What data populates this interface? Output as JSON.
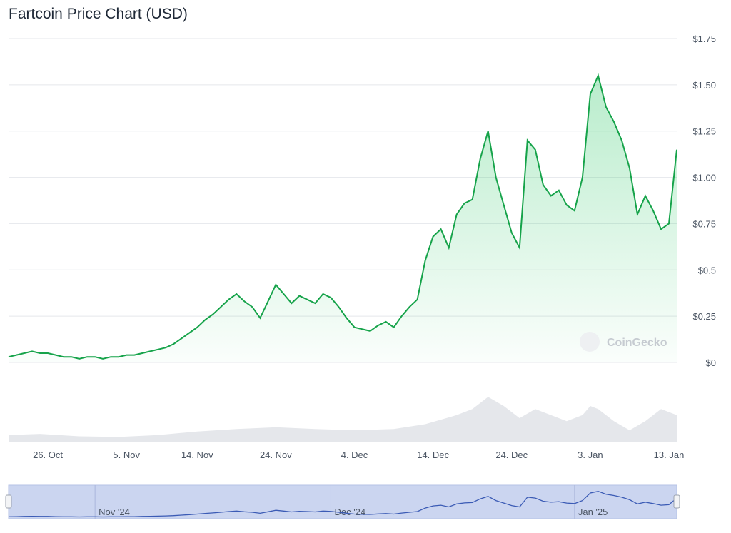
{
  "title": "Fartcoin Price Chart (USD)",
  "watermark": "CoinGecko",
  "colors": {
    "line": "#16a34a",
    "area": "#22c55e",
    "grid": "#e5e7eb",
    "volume": "#e5e7eb",
    "navigator_bg": "#cbd5f0",
    "navigator_line": "#3b5bb5"
  },
  "navigator": {
    "labels": [
      "Nov '24",
      "Dec '24",
      "Jan '25"
    ]
  },
  "chart_data": {
    "type": "area",
    "title": "Fartcoin Price Chart (USD)",
    "ylabel": "",
    "xlabel": "",
    "ylim": [
      0,
      1.75
    ],
    "y_ticks": [
      "$0",
      "$0.25",
      "$0.5",
      "$0.75",
      "$1.00",
      "$1.25",
      "$1.50",
      "$1.75"
    ],
    "y_tick_values": [
      0,
      0.25,
      0.5,
      0.75,
      1.0,
      1.25,
      1.5,
      1.75
    ],
    "x_ticks": [
      "26. Oct",
      "5. Nov",
      "14. Nov",
      "24. Nov",
      "4. Dec",
      "14. Dec",
      "24. Dec",
      "3. Jan",
      "13. Jan"
    ],
    "x_tick_days": [
      26,
      36,
      45,
      55,
      65,
      75,
      85,
      95,
      105
    ],
    "x_range_days": [
      21,
      106
    ],
    "grid": true,
    "x_unit": "days from 1 Oct 2024",
    "series": [
      {
        "values": [
          [
            21,
            0.03
          ],
          [
            22,
            0.04
          ],
          [
            23,
            0.05
          ],
          [
            24,
            0.06
          ],
          [
            25,
            0.05
          ],
          [
            26,
            0.05
          ],
          [
            27,
            0.04
          ],
          [
            28,
            0.03
          ],
          [
            29,
            0.03
          ],
          [
            30,
            0.02
          ],
          [
            31,
            0.03
          ],
          [
            32,
            0.03
          ],
          [
            33,
            0.02
          ],
          [
            34,
            0.03
          ],
          [
            35,
            0.03
          ],
          [
            36,
            0.04
          ],
          [
            37,
            0.04
          ],
          [
            38,
            0.05
          ],
          [
            39,
            0.06
          ],
          [
            40,
            0.07
          ],
          [
            41,
            0.08
          ],
          [
            42,
            0.1
          ],
          [
            43,
            0.13
          ],
          [
            44,
            0.16
          ],
          [
            45,
            0.19
          ],
          [
            46,
            0.23
          ],
          [
            47,
            0.26
          ],
          [
            48,
            0.3
          ],
          [
            49,
            0.34
          ],
          [
            50,
            0.37
          ],
          [
            51,
            0.33
          ],
          [
            52,
            0.3
          ],
          [
            53,
            0.24
          ],
          [
            54,
            0.33
          ],
          [
            55,
            0.42
          ],
          [
            56,
            0.37
          ],
          [
            57,
            0.32
          ],
          [
            58,
            0.36
          ],
          [
            59,
            0.34
          ],
          [
            60,
            0.32
          ],
          [
            61,
            0.37
          ],
          [
            62,
            0.35
          ],
          [
            63,
            0.3
          ],
          [
            64,
            0.24
          ],
          [
            65,
            0.19
          ],
          [
            66,
            0.18
          ],
          [
            67,
            0.17
          ],
          [
            68,
            0.2
          ],
          [
            69,
            0.22
          ],
          [
            70,
            0.19
          ],
          [
            71,
            0.25
          ],
          [
            72,
            0.3
          ],
          [
            73,
            0.34
          ],
          [
            74,
            0.55
          ],
          [
            75,
            0.68
          ],
          [
            76,
            0.72
          ],
          [
            77,
            0.62
          ],
          [
            78,
            0.8
          ],
          [
            79,
            0.86
          ],
          [
            80,
            0.88
          ],
          [
            81,
            1.1
          ],
          [
            82,
            1.25
          ],
          [
            83,
            1.0
          ],
          [
            84,
            0.85
          ],
          [
            85,
            0.7
          ],
          [
            86,
            0.62
          ],
          [
            87,
            1.2
          ],
          [
            88,
            1.15
          ],
          [
            89,
            0.96
          ],
          [
            90,
            0.9
          ],
          [
            91,
            0.93
          ],
          [
            92,
            0.85
          ],
          [
            93,
            0.82
          ],
          [
            94,
            1.0
          ],
          [
            95,
            1.45
          ],
          [
            96,
            1.55
          ],
          [
            97,
            1.38
          ],
          [
            98,
            1.3
          ],
          [
            99,
            1.2
          ],
          [
            100,
            1.05
          ],
          [
            101,
            0.8
          ],
          [
            102,
            0.9
          ],
          [
            103,
            0.82
          ],
          [
            104,
            0.72
          ],
          [
            105,
            0.75
          ],
          [
            106,
            1.15
          ]
        ]
      }
    ],
    "volume_series": [
      [
        21,
        0.12
      ],
      [
        25,
        0.14
      ],
      [
        30,
        0.1
      ],
      [
        35,
        0.09
      ],
      [
        40,
        0.12
      ],
      [
        45,
        0.18
      ],
      [
        50,
        0.22
      ],
      [
        55,
        0.25
      ],
      [
        60,
        0.22
      ],
      [
        65,
        0.2
      ],
      [
        70,
        0.22
      ],
      [
        74,
        0.3
      ],
      [
        78,
        0.45
      ],
      [
        80,
        0.55
      ],
      [
        82,
        0.75
      ],
      [
        84,
        0.6
      ],
      [
        86,
        0.4
      ],
      [
        88,
        0.55
      ],
      [
        90,
        0.45
      ],
      [
        92,
        0.35
      ],
      [
        94,
        0.45
      ],
      [
        95,
        0.6
      ],
      [
        96,
        0.55
      ],
      [
        98,
        0.35
      ],
      [
        100,
        0.2
      ],
      [
        102,
        0.35
      ],
      [
        104,
        0.55
      ],
      [
        106,
        0.45
      ]
    ]
  }
}
